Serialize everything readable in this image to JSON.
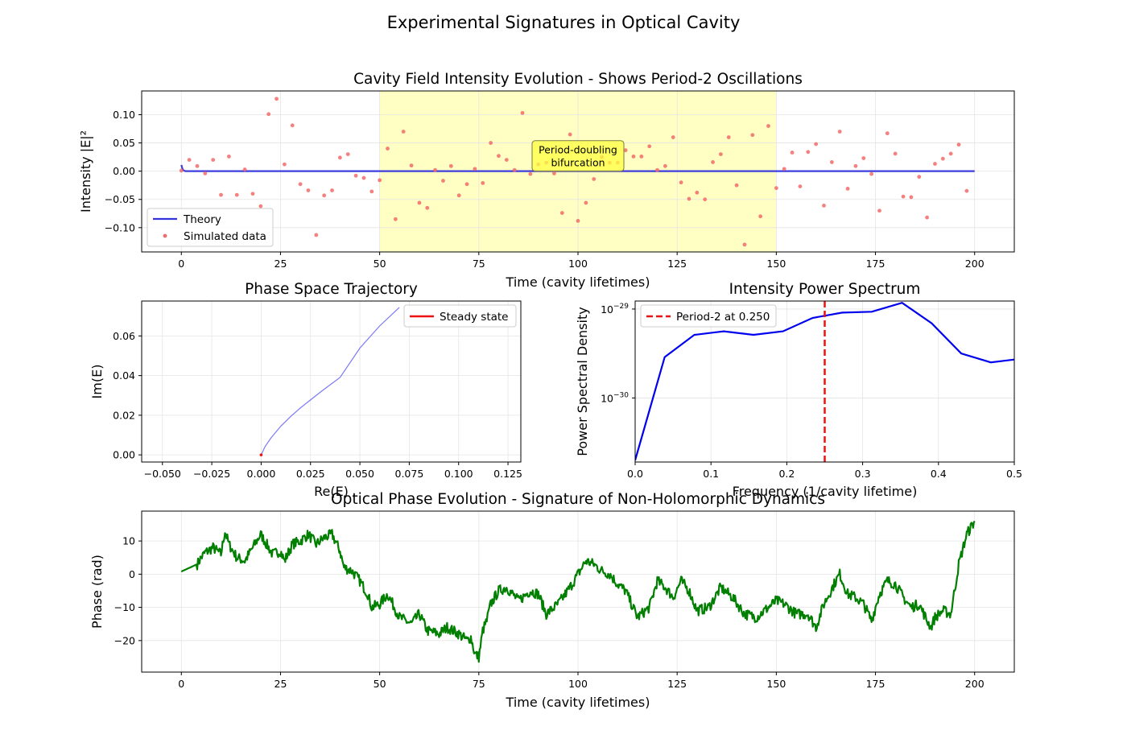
{
  "figure_title": "Experimental Signatures in Optical Cavity",
  "chart_data": [
    {
      "id": "intensity",
      "type": "line",
      "title": "Cavity Field Intensity Evolution - Shows Period-2 Oscillations",
      "xlabel": "Time (cavity lifetimes)",
      "ylabel": "Intensity |E|²",
      "xlim": [
        -10,
        210
      ],
      "ylim": [
        -0.143,
        0.142
      ],
      "xticks": [
        0,
        25,
        50,
        75,
        100,
        125,
        150,
        175,
        200
      ],
      "yticks": [
        -0.1,
        -0.05,
        0.0,
        0.05,
        0.1
      ],
      "ytick_labels": [
        "−0.10",
        "−0.05",
        "0.00",
        "0.05",
        "0.10"
      ],
      "grid": true,
      "legend_position": "lower-left",
      "highlight_region": {
        "x": [
          50,
          150
        ],
        "color": "#ffffc4"
      },
      "annotation": {
        "lines": [
          "Period-doubling",
          "bifurcation"
        ],
        "x": 100,
        "y": 0.027
      },
      "series": [
        {
          "name": "Theory",
          "kind": "line",
          "color": "#3333dd",
          "x": [
            0,
            0.2,
            0.4,
            1,
            200
          ],
          "y": [
            0.011,
            0.006,
            0.002,
            0.0,
            0.0
          ]
        },
        {
          "name": "Simulated data",
          "kind": "scatter",
          "color": "#f26a6a",
          "x": [
            0,
            2,
            4,
            6,
            8,
            10,
            12,
            14,
            16,
            18,
            20,
            22,
            24,
            26,
            28,
            30,
            32,
            34,
            36,
            38,
            40,
            42,
            44,
            46,
            48,
            50,
            52,
            54,
            56,
            58,
            60,
            62,
            64,
            66,
            68,
            70,
            72,
            74,
            76,
            78,
            80,
            82,
            84,
            86,
            88,
            90,
            92,
            94,
            96,
            98,
            100,
            102,
            104,
            106,
            108,
            110,
            112,
            114,
            116,
            118,
            120,
            122,
            124,
            126,
            128,
            130,
            132,
            134,
            136,
            138,
            140,
            142,
            144,
            146,
            148,
            150,
            152,
            154,
            156,
            158,
            160,
            162,
            164,
            166,
            168,
            170,
            172,
            174,
            176,
            178,
            180,
            182,
            184,
            186,
            188,
            190,
            192,
            194,
            196,
            198
          ],
          "y": [
            0.001,
            0.02,
            0.009,
            -0.004,
            0.02,
            -0.042,
            0.026,
            -0.042,
            0.003,
            -0.04,
            -0.062,
            0.101,
            0.128,
            0.012,
            0.081,
            -0.023,
            -0.034,
            -0.113,
            -0.043,
            -0.034,
            0.024,
            0.03,
            -0.008,
            -0.012,
            -0.036,
            -0.016,
            0.04,
            -0.085,
            0.07,
            0.01,
            -0.056,
            -0.065,
            0.002,
            -0.017,
            0.009,
            -0.043,
            -0.023,
            0.004,
            -0.021,
            0.05,
            0.027,
            0.02,
            0.002,
            0.103,
            -0.005,
            0.012,
            0.015,
            -0.004,
            -0.074,
            0.065,
            -0.088,
            -0.056,
            -0.014,
            0.025,
            0.015,
            0.015,
            0.037,
            0.026,
            0.026,
            0.044,
            0.002,
            0.009,
            0.06,
            -0.02,
            -0.049,
            -0.038,
            -0.05,
            0.016,
            0.03,
            0.06,
            -0.025,
            -0.13,
            0.064,
            -0.08,
            0.08,
            -0.03,
            0.004,
            0.033,
            -0.027,
            0.034,
            0.048,
            -0.061,
            0.016,
            0.07,
            -0.031,
            0.009,
            0.023,
            -0.005,
            -0.07,
            0.067,
            0.031,
            -0.045,
            -0.046,
            -0.01,
            -0.082,
            0.013,
            0.022,
            0.031,
            0.047,
            -0.035
          ]
        }
      ]
    },
    {
      "id": "phase-space",
      "type": "line",
      "title": "Phase Space Trajectory",
      "xlabel": "Re(E)",
      "ylabel": "Im(E)",
      "xlim": [
        -0.0605,
        0.1315
      ],
      "ylim": [
        -0.0036,
        0.0776
      ],
      "xticks": [
        -0.05,
        -0.025,
        0,
        0.025,
        0.05,
        0.075,
        0.1,
        0.125
      ],
      "xtick_labels": [
        "−0.050",
        "−0.025",
        "0.000",
        "0.025",
        "0.050",
        "0.075",
        "0.100",
        "0.125"
      ],
      "yticks": [
        0,
        0.02,
        0.04,
        0.06
      ],
      "ytick_labels": [
        "0.00",
        "0.02",
        "0.04",
        "0.06"
      ],
      "grid": true,
      "legend_position": "top-right",
      "series": [
        {
          "name": "",
          "kind": "line",
          "color": "#7a7af5",
          "x": [
            0,
            0.002,
            0.005,
            0.01,
            0.015,
            0.02,
            0.03,
            0.04,
            0.05,
            0.06,
            0.07
          ],
          "y": [
            0,
            0.0042,
            0.0086,
            0.0145,
            0.0194,
            0.0238,
            0.0317,
            0.0391,
            0.0539,
            0.065,
            0.0744
          ]
        },
        {
          "name": "Steady state",
          "kind": "point",
          "color": "#ee1111",
          "x": [
            0
          ],
          "y": [
            0
          ]
        }
      ]
    },
    {
      "id": "power-spectrum",
      "type": "line",
      "title": "Intensity Power Spectrum",
      "xlabel": "Frequency (1/cavity lifetime)",
      "ylabel": "Power Spectral Density",
      "xlim": [
        0,
        0.5
      ],
      "ylim_log10": [
        -30.72,
        -28.91
      ],
      "yscale": "log",
      "xticks": [
        0,
        0.1,
        0.2,
        0.3,
        0.4,
        0.5
      ],
      "xtick_labels": [
        "0.0",
        "0.1",
        "0.2",
        "0.3",
        "0.4",
        "0.5"
      ],
      "yticks_log10": [
        -30,
        -29
      ],
      "grid": true,
      "legend_position": "top-left",
      "marker_line": {
        "name": "Period-2 at 0.250",
        "x": 0.25,
        "color": "#ee1111"
      },
      "series": [
        {
          "name": "",
          "kind": "line",
          "color": "#0000ee",
          "x": [
            0,
            0.039,
            0.078,
            0.117,
            0.156,
            0.195,
            0.234,
            0.273,
            0.312,
            0.352,
            0.391,
            0.43,
            0.469,
            0.508
          ],
          "y_log10": [
            -30.7,
            -29.54,
            -29.29,
            -29.25,
            -29.29,
            -29.25,
            -29.1,
            -29.04,
            -29.03,
            -28.93,
            -29.16,
            -29.5,
            -29.6,
            -29.56
          ]
        }
      ]
    },
    {
      "id": "phase",
      "type": "line",
      "title": "Optical Phase Evolution - Signature of Non-Holomorphic Dynamics",
      "xlabel": "Time (cavity lifetimes)",
      "ylabel": "Phase (rad)",
      "xlim": [
        -10,
        210
      ],
      "ylim": [
        -29.5,
        19
      ],
      "xticks": [
        0,
        25,
        50,
        75,
        100,
        125,
        150,
        175,
        200
      ],
      "yticks": [
        -20,
        -10,
        0,
        10
      ],
      "ytick_labels": [
        "−20",
        "−10",
        "0",
        "10"
      ],
      "grid": true,
      "series": [
        {
          "name": "",
          "kind": "line",
          "color": "#007f00",
          "x": [
            0,
            4,
            5,
            6,
            8,
            10,
            11,
            12,
            14,
            16,
            18,
            20,
            21,
            23,
            25,
            26,
            28,
            30,
            32,
            34,
            36,
            38,
            40,
            41,
            43,
            45,
            47,
            48,
            50,
            52,
            55,
            58,
            60,
            62,
            65,
            67,
            70,
            72,
            73,
            74,
            75,
            76,
            77,
            78,
            80,
            82,
            85,
            88,
            90,
            92,
            95,
            98,
            100,
            102,
            104,
            106,
            108,
            110,
            112,
            115,
            118,
            120,
            122,
            124,
            126,
            128,
            130,
            133,
            136,
            139,
            142,
            145,
            148,
            150,
            152,
            155,
            158,
            160,
            162,
            165,
            166,
            168,
            170,
            172,
            174,
            176,
            178,
            180,
            182,
            184,
            186,
            188,
            189,
            190,
            192,
            194,
            196,
            198,
            200
          ],
          "y": [
            0.8,
            3,
            5,
            6.5,
            8,
            6,
            13,
            9,
            5,
            4,
            8,
            12,
            10,
            6,
            7,
            4,
            9,
            10,
            12,
            9,
            11,
            12,
            7,
            2,
            1,
            -2,
            -6,
            -10,
            -9,
            -6,
            -13,
            -15,
            -12,
            -17,
            -18,
            -16,
            -18,
            -20,
            -19,
            -24,
            -25,
            -17,
            -14,
            -9,
            -5,
            -4,
            -8,
            -5,
            -6,
            -12,
            -9,
            -4,
            0,
            4,
            3,
            1,
            0,
            -3,
            -5,
            -13,
            -10,
            -2,
            -4,
            -7,
            -2,
            -5,
            -11,
            -10,
            -4,
            -7,
            -12,
            -13,
            -10,
            -8,
            -9,
            -12,
            -12,
            -16,
            -9,
            -2,
            0,
            -6,
            -7,
            -9,
            -14,
            -6,
            -2,
            -3,
            -7,
            -10,
            -9,
            -14,
            -16,
            -13,
            -11,
            -12,
            3,
            12,
            16
          ]
        }
      ]
    }
  ]
}
